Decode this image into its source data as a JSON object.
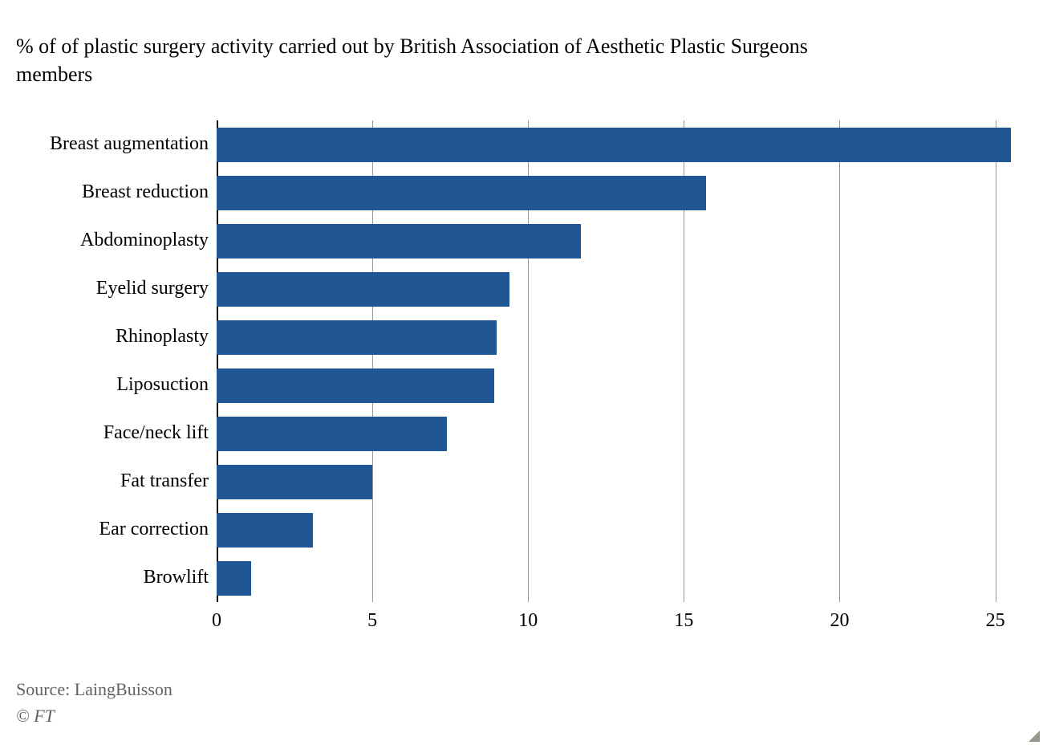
{
  "title": "% of of plastic surgery activity carried out by British Association of Aesthetic Plastic Surgeons members",
  "source_label": "Source: LaingBuisson",
  "copyright": "© FT",
  "chart": {
    "type": "bar-horizontal",
    "background_color": "#ffffff",
    "bar_color": "#1f5693",
    "grid_zero_color": "#000000",
    "grid_color": "#999999",
    "text_color": "#000000",
    "footer_color": "#66605c",
    "title_fontsize": 26,
    "label_fontsize": 24,
    "tick_fontsize": 24,
    "xlim": [
      0,
      25.5
    ],
    "xticks": [
      0,
      5,
      10,
      15,
      20,
      25
    ],
    "bar_height_ratio": 0.72,
    "categories": [
      "Breast augmentation",
      "Breast reduction",
      "Abdominoplasty",
      "Eyelid surgery",
      "Rhinoplasty",
      "Liposuction",
      "Face/neck lift",
      "Fat transfer",
      "Ear correction",
      "Browlift"
    ],
    "values": [
      25.5,
      15.7,
      11.7,
      9.4,
      9.0,
      8.9,
      7.4,
      5.0,
      3.1,
      1.1
    ]
  }
}
